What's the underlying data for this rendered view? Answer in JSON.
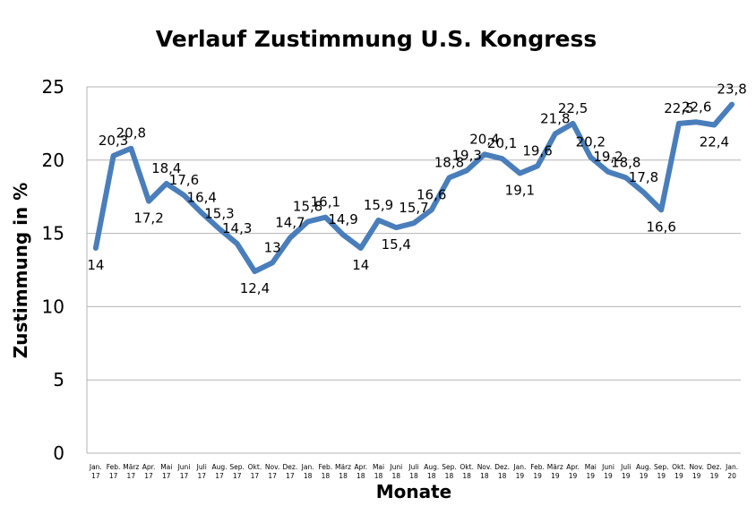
{
  "chart_data": {
    "type": "line",
    "title": "Verlauf Zustimmung U.S. Kongress",
    "xlabel": "Monate",
    "ylabel": "Zustimmung in %",
    "ylim": [
      0,
      25
    ],
    "yticks": [
      0,
      5,
      10,
      15,
      20,
      25
    ],
    "grid": true,
    "line_color": "#4a7ebb",
    "categories": [
      [
        "Jan.",
        "17"
      ],
      [
        "Feb.",
        "17"
      ],
      [
        "März",
        "17"
      ],
      [
        "Apr.",
        "17"
      ],
      [
        "Mai",
        "17"
      ],
      [
        "Juni",
        "17"
      ],
      [
        "Juli",
        "17"
      ],
      [
        "Aug.",
        "17"
      ],
      [
        "Sep.",
        "17"
      ],
      [
        "Okt.",
        "17"
      ],
      [
        "Nov.",
        "17"
      ],
      [
        "Dez.",
        "17"
      ],
      [
        "Jan.",
        "18"
      ],
      [
        "Feb.",
        "18"
      ],
      [
        "März",
        "18"
      ],
      [
        "Apr.",
        "18"
      ],
      [
        "Mai",
        "18"
      ],
      [
        "Juni",
        "18"
      ],
      [
        "Juli",
        "18"
      ],
      [
        "Aug.",
        "18"
      ],
      [
        "Sep.",
        "18"
      ],
      [
        "Okt.",
        "18"
      ],
      [
        "Nov.",
        "18"
      ],
      [
        "Dez.",
        "18"
      ],
      [
        "Jan.",
        "19"
      ],
      [
        "Feb.",
        "19"
      ],
      [
        "März",
        "19"
      ],
      [
        "Apr.",
        "19"
      ],
      [
        "Mai",
        "19"
      ],
      [
        "Juni",
        "19"
      ],
      [
        "Juli",
        "19"
      ],
      [
        "Aug.",
        "19"
      ],
      [
        "Sep.",
        "19"
      ],
      [
        "Okt.",
        "19"
      ],
      [
        "Nov.",
        "19"
      ],
      [
        "Dez.",
        "19"
      ],
      [
        "Jan.",
        "20"
      ]
    ],
    "values": [
      14,
      20.3,
      20.8,
      17.2,
      18.4,
      17.6,
      16.4,
      15.3,
      14.3,
      12.4,
      13,
      14.7,
      15.8,
      16.1,
      14.9,
      14,
      15.9,
      15.4,
      15.7,
      16.6,
      18.8,
      19.3,
      20.4,
      20.1,
      19.1,
      19.6,
      21.8,
      22.5,
      20.2,
      19.2,
      18.8,
      17.8,
      16.6,
      22.5,
      22.6,
      22.4,
      23.8
    ],
    "data_labels": [
      "14",
      "20,3",
      "20,8",
      "17,2",
      "18,4",
      "17,6",
      "16,4",
      "15,3",
      "14,3",
      "12,4",
      "13",
      "14,7",
      "15,8",
      "16,1",
      "14,9",
      "14",
      "15,9",
      "15,4",
      "15,7",
      "16,6",
      "18,8",
      "19,3",
      "20,4",
      "20,1",
      "19,1",
      "19,6",
      "21,8",
      "22,5",
      "20,2",
      "19,2",
      "18,8",
      "17,8",
      "16,6",
      "22,5",
      "22,6",
      "22,4",
      "23,8"
    ]
  }
}
